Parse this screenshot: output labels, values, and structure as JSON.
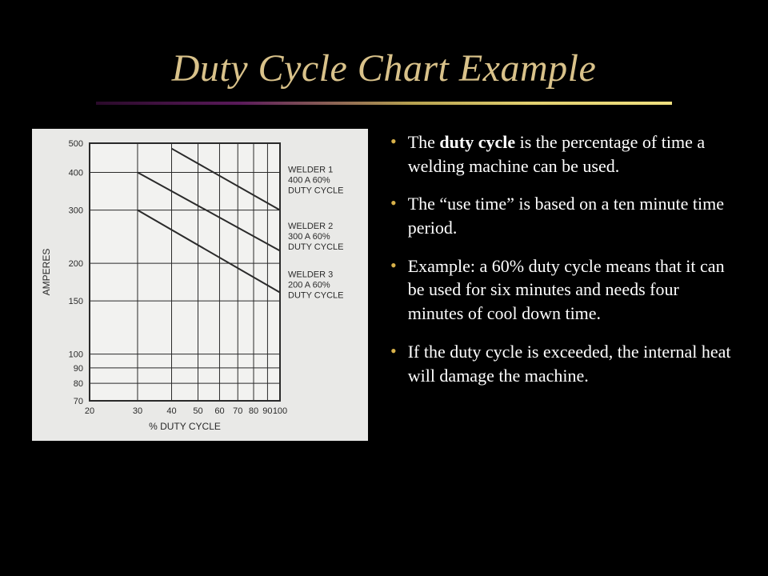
{
  "title": "Duty Cycle Chart Example",
  "title_color": "#d9c28a",
  "title_fontsize": 48,
  "underline_gradient": [
    "#2a0a2a",
    "#5a1a5a",
    "#b7a250",
    "#e2d070",
    "#f0e080"
  ],
  "background_color": "#000000",
  "bullets": [
    {
      "html": "The <b>duty cycle</b> is the percentage of time a welding machine can be used."
    },
    {
      "html": "The “use time” is based on a ten minute time period."
    },
    {
      "html": "Example: a 60% duty cycle means that it can be used for six minutes and needs four minutes of cool down time."
    },
    {
      "html": "If the duty cycle is exceeded, the internal heat will damage the machine."
    }
  ],
  "bullet_dot_color": "#d9b24a",
  "bullet_text_color": "#ffffff",
  "bullet_fontsize": 22,
  "chart": {
    "type": "line",
    "panel_bg": "#e9e9e7",
    "plot_bg": "#f2f2f0",
    "grid_color": "#2a2a2a",
    "axis_color": "#2a2a2a",
    "text_color": "#2a2a2a",
    "font_family": "Arial, Helvetica, sans-serif",
    "ylabel": "AMPERES",
    "xlabel": "% DUTY CYCLE",
    "label_fontsize": 12,
    "tick_fontsize": 11,
    "x_scale": "log",
    "y_scale": "log",
    "x_ticks": [
      20,
      30,
      40,
      50,
      60,
      70,
      80,
      90,
      100
    ],
    "y_ticks": [
      70,
      80,
      90,
      100,
      150,
      200,
      300,
      400,
      500
    ],
    "xlim": [
      20,
      100
    ],
    "ylim": [
      70,
      500
    ],
    "line_width": 2,
    "line_color": "#2a2a2a",
    "series": [
      {
        "name": "WELDER 1",
        "label": "WELDER 1\n400 A 60%\nDUTY CYCLE",
        "points": [
          [
            40,
            480
          ],
          [
            100,
            300
          ]
        ],
        "label_y": 400
      },
      {
        "name": "WELDER 2",
        "label": "WELDER 2\n300 A 60%\nDUTY CYCLE",
        "points": [
          [
            30,
            400
          ],
          [
            100,
            220
          ]
        ],
        "label_y": 260
      },
      {
        "name": "WELDER 3",
        "label": "WELDER 3\n200 A 60%\nDUTY CYCLE",
        "points": [
          [
            30,
            300
          ],
          [
            100,
            160
          ]
        ],
        "label_y": 180
      }
    ],
    "series_label_fontsize": 11
  }
}
